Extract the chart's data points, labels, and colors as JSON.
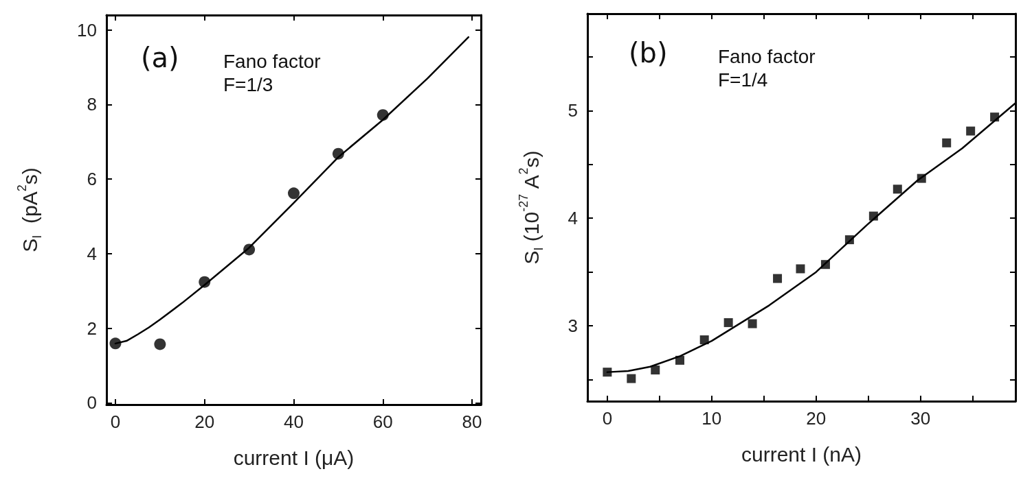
{
  "chart_data": [
    {
      "type": "scatter",
      "xlabel": "current I (μA)",
      "ylabel": "S$_{I}$  (pA$^{2}$s)",
      "annotations": [
        "(a)",
        "Fano factor\nF=1/3"
      ],
      "xlim": [
        -2,
        82
      ],
      "ylim": [
        -0.05,
        10.4
      ],
      "xticks": [
        0,
        20,
        40,
        60,
        80
      ],
      "yticks": [
        0,
        2,
        4,
        6,
        8,
        10
      ],
      "grid": false,
      "marker": "circle",
      "series": [
        {
          "type": "scatter",
          "color": "#000000",
          "x": [
            0,
            10,
            20,
            30,
            40,
            50,
            60
          ],
          "values": [
            1.59,
            1.57,
            3.24,
            4.11,
            5.62,
            6.68,
            7.72
          ]
        },
        {
          "type": "line",
          "color": "#000000",
          "marker": "none",
          "line_style": "solid",
          "x": [
            0,
            2.5,
            5.1,
            7.5,
            10,
            15,
            20,
            30,
            40,
            50,
            60,
            70,
            79.2
          ],
          "values": [
            1.59,
            1.66,
            1.84,
            2.02,
            2.23,
            2.68,
            3.16,
            4.16,
            5.36,
            6.59,
            7.59,
            8.7,
            9.81
          ]
        }
      ]
    },
    {
      "type": "scatter",
      "xlabel": "current I (nA)",
      "ylabel": "S$_{I}$ (10$^{-27}$ A$^{2}$s)",
      "annotations": [
        "(b)",
        "Fano factor\nF=1/4"
      ],
      "xlim": [
        -1.9,
        39.1
      ],
      "ylim": [
        2.3,
        5.9
      ],
      "xticks": [
        0,
        {
          "value": 5,
          "label": null
        },
        10,
        {
          "value": 15,
          "label": null
        },
        20,
        {
          "value": 25,
          "label": null
        },
        30,
        {
          "value": 35,
          "label": null
        }
      ],
      "yticks": [
        {
          "value": 2.5,
          "label": null
        },
        3,
        {
          "value": 3.5,
          "label": null
        },
        4,
        {
          "value": 4.5,
          "label": null
        },
        5,
        {
          "value": 5.5,
          "label": null
        }
      ],
      "grid": false,
      "marker": "square",
      "series": [
        {
          "type": "scatter",
          "color": "#000000",
          "x": [
            0,
            2.3,
            4.6,
            6.95,
            9.3,
            11.6,
            13.9,
            16.3,
            18.5,
            20.9,
            23.2,
            25.5,
            27.8,
            30.1,
            32.5,
            34.8,
            37.1
          ],
          "values": [
            2.57,
            2.51,
            2.59,
            2.68,
            2.87,
            3.03,
            3.02,
            3.44,
            3.53,
            3.57,
            3.8,
            4.02,
            4.27,
            4.37,
            4.7,
            4.81,
            4.94
          ]
        },
        {
          "type": "line",
          "color": "#000000",
          "marker": "none",
          "line_style": "solid",
          "x": [
            0,
            2,
            4.1,
            7,
            10,
            15.5,
            20,
            24.9,
            29.7,
            34,
            39.1
          ],
          "values": [
            2.57,
            2.58,
            2.62,
            2.72,
            2.86,
            3.19,
            3.5,
            3.94,
            4.35,
            4.65,
            5.07
          ]
        }
      ]
    }
  ]
}
